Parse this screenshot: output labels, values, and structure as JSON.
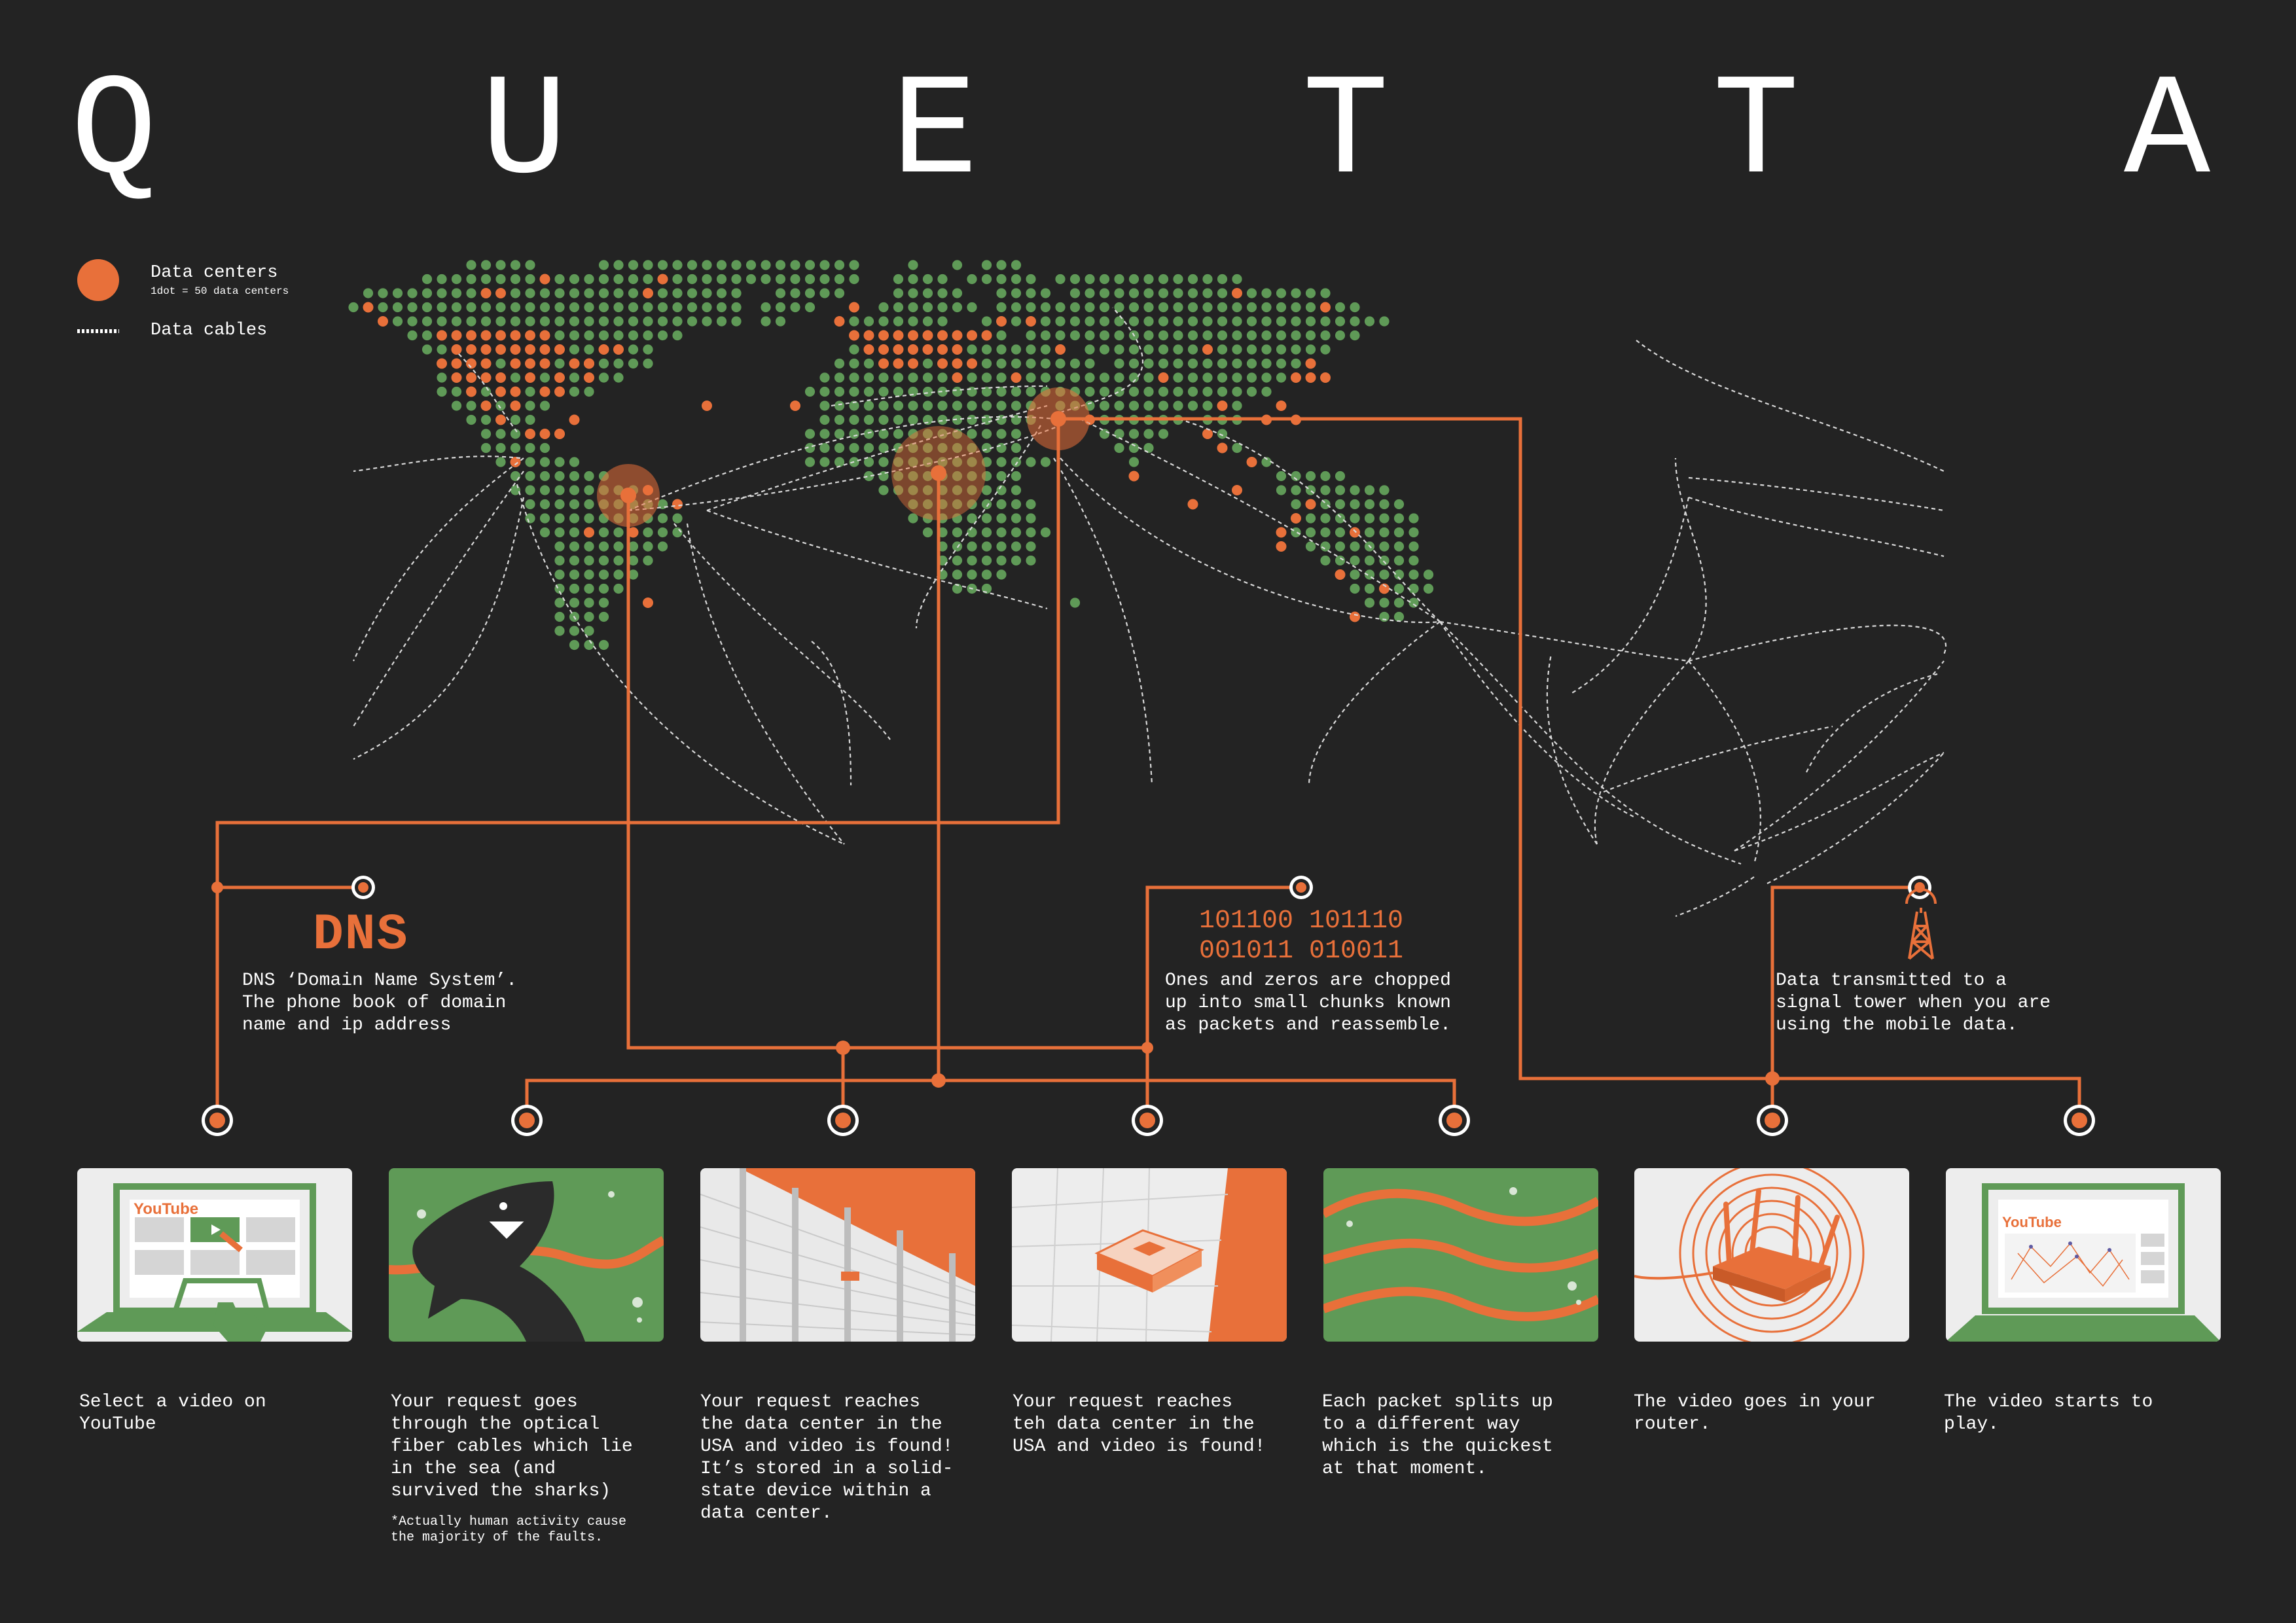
{
  "title": {
    "letters": [
      "Q",
      "U",
      "E",
      "T",
      "T",
      "A"
    ]
  },
  "legend": {
    "data_centers_label": "Data centers",
    "data_centers_note": "1dot = 50 data centers",
    "data_cables_label": "Data cables"
  },
  "colors": {
    "background": "#232323",
    "land": "#5f9a57",
    "accent": "#e8703a",
    "cable": "#d9d9d9",
    "text": "#ffffff"
  },
  "info": {
    "dns": {
      "heading": "DNS",
      "text": "DNS ‘Domain Name System’.\nThe phone book of domain\nname and ip address"
    },
    "packets": {
      "binary_line1": "101100 101110",
      "binary_line2": "001011 010011",
      "text": "Ones and zeros are chopped\nup into small chunks known\nas packets and reassemble."
    },
    "tower": {
      "icon": "signal-tower-icon",
      "text": "Data transmitted to a\nsignal tower when you are\nusing the mobile data."
    }
  },
  "steps": [
    {
      "icon": "laptop-click-icon",
      "panel_label": "YouTube",
      "caption": "Select a video on\nYouTube"
    },
    {
      "icon": "shark-cable-icon",
      "caption": "Your request goes\nthrough the optical\nfiber cables which lie\nin the sea (and\nsurvived the sharks)"
    },
    {
      "icon": "data-center-icon",
      "caption": "Your request reaches\nthe data center in the\nUSA and video is found!\nIt’s stored in a solid-\nstate device within a\ndata center."
    },
    {
      "icon": "server-rack-icon",
      "caption": "Your request reaches\nteh data center in the\nUSA and video is found!"
    },
    {
      "icon": "packet-waves-icon",
      "caption": "Each packet splits up\nto a different way\nwhich is the quickest\nat that moment."
    },
    {
      "icon": "router-icon",
      "caption": "The video goes in your\nrouter."
    },
    {
      "icon": "laptop-video-icon",
      "panel_label": "YouTube",
      "caption": "The video starts to\nplay."
    }
  ],
  "footnote": "*Actually human activity cause\nthe majority of the faults."
}
